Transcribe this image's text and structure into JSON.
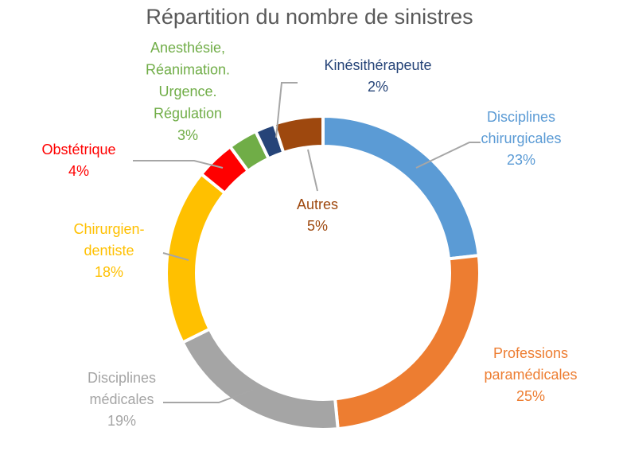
{
  "chart_data": {
    "type": "pie",
    "variant": "doughnut",
    "title": "Répartition du nombre de sinistres",
    "legend": "none",
    "slices": [
      {
        "key": "chir",
        "lines": [
          "Disciplines",
          "chirurgicales"
        ],
        "pct_label": "23%",
        "value": 23,
        "color": "#5b9bd5"
      },
      {
        "key": "para",
        "lines": [
          "Professions",
          "paramédicales"
        ],
        "pct_label": "25%",
        "value": 25,
        "color": "#ed7d31"
      },
      {
        "key": "med",
        "lines": [
          "Disciplines",
          "médicales"
        ],
        "pct_label": "19%",
        "value": 19,
        "color": "#a5a5a5"
      },
      {
        "key": "dent",
        "lines": [
          "Chirurgien-",
          "dentiste"
        ],
        "pct_label": "18%",
        "value": 18,
        "color": "#ffc000"
      },
      {
        "key": "obst",
        "lines": [
          "Obstétrique"
        ],
        "pct_label": "4%",
        "value": 4,
        "color": "#ff0000"
      },
      {
        "key": "anes",
        "lines": [
          "Anesthésie,",
          "Réanimation.",
          "Urgence.",
          "Régulation"
        ],
        "pct_label": "3%",
        "value": 3,
        "color": "#70ad47"
      },
      {
        "key": "kine",
        "lines": [
          "Kinésithérapeute"
        ],
        "pct_label": "2%",
        "value": 2,
        "color": "#264478"
      },
      {
        "key": "autr",
        "lines": [
          "Autres"
        ],
        "pct_label": "5%",
        "value": 5,
        "color": "#9e480e"
      }
    ]
  }
}
